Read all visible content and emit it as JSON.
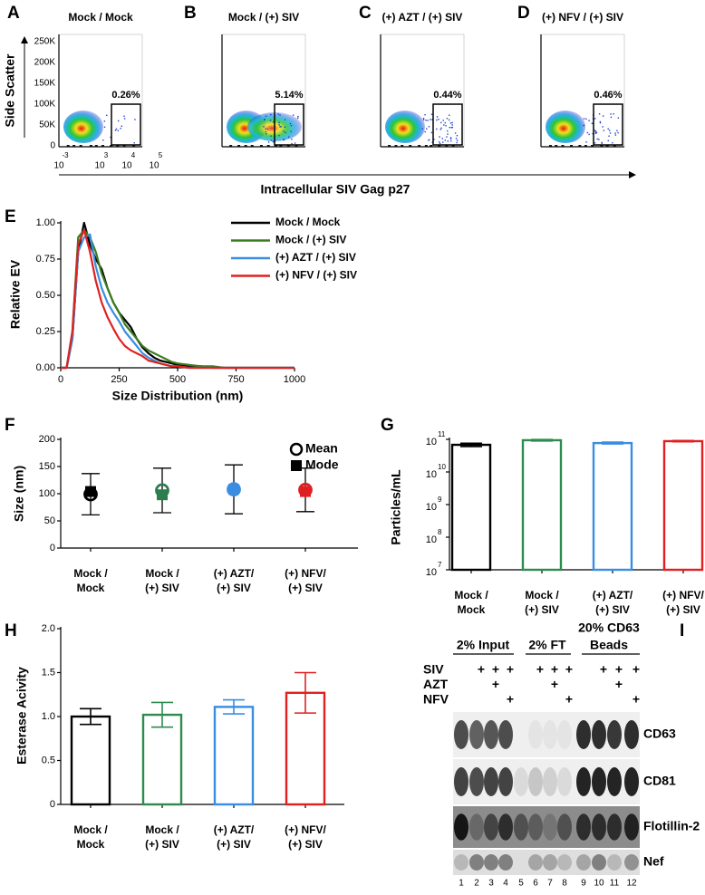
{
  "flow": {
    "y_label": "Side Scatter",
    "x_label": "Intracellular SIV Gag p27",
    "y_ticks": [
      "250K",
      "200K",
      "150K",
      "100K",
      "50K",
      "0"
    ],
    "x_ticks": [
      {
        "base": "10",
        "exponent": "-3"
      },
      {
        "base": "10",
        "exponent": "3"
      },
      {
        "base": "10",
        "exponent": "4"
      },
      {
        "base": "10",
        "exponent": "5"
      }
    ],
    "panels": [
      {
        "letter": "A",
        "title": "Mock / Mock",
        "gate": "0.26%"
      },
      {
        "letter": "B",
        "title": "Mock / (+) SIV",
        "gate": "5.14%"
      },
      {
        "letter": "C",
        "title": "(+) AZT / (+) SIV",
        "gate": "0.44%"
      },
      {
        "letter": "D",
        "title": "(+) NFV / (+) SIV",
        "gate": "0.46%"
      }
    ]
  },
  "chart_data": [
    {
      "panel": "E",
      "type": "line",
      "x_label": "Size Distribution (nm)",
      "y_label": "Relative EV",
      "x": [
        0,
        25,
        50,
        75,
        100,
        125,
        150,
        175,
        200,
        225,
        250,
        275,
        300,
        325,
        350,
        375,
        400,
        425,
        450,
        475,
        500,
        550,
        600,
        650,
        700,
        750,
        800,
        850,
        900,
        950,
        1000
      ],
      "series": [
        {
          "name": "Mock / Mock",
          "color": "#000000",
          "values": [
            0,
            0,
            0.2,
            0.8,
            1.0,
            0.85,
            0.75,
            0.68,
            0.55,
            0.45,
            0.38,
            0.33,
            0.28,
            0.2,
            0.14,
            0.1,
            0.07,
            0.05,
            0.04,
            0.03,
            0.02,
            0.01,
            0.01,
            0,
            0,
            0,
            0,
            0,
            0,
            0,
            0
          ]
        },
        {
          "name": "Mock / (+) SIV",
          "color": "#3a7d1e",
          "values": [
            0,
            0,
            0.25,
            0.9,
            0.95,
            0.9,
            0.8,
            0.65,
            0.55,
            0.45,
            0.38,
            0.3,
            0.25,
            0.2,
            0.15,
            0.12,
            0.1,
            0.08,
            0.06,
            0.04,
            0.03,
            0.02,
            0.01,
            0.01,
            0,
            0,
            0,
            0,
            0,
            0,
            0
          ]
        },
        {
          "name": "(+) AZT / (+) SIV",
          "color": "#3a8de0",
          "values": [
            0,
            0,
            0.2,
            0.8,
            0.9,
            0.92,
            0.7,
            0.55,
            0.45,
            0.38,
            0.32,
            0.25,
            0.2,
            0.15,
            0.1,
            0.07,
            0.05,
            0.03,
            0.02,
            0.01,
            0.01,
            0,
            0,
            0,
            0,
            0,
            0,
            0,
            0,
            0,
            0
          ]
        },
        {
          "name": "(+) NFV / (+) SIV",
          "color": "#e02020",
          "values": [
            0,
            0,
            0.25,
            0.85,
            0.95,
            0.8,
            0.6,
            0.45,
            0.35,
            0.27,
            0.2,
            0.15,
            0.12,
            0.1,
            0.08,
            0.05,
            0.04,
            0.03,
            0.02,
            0.01,
            0.01,
            0,
            0,
            0,
            0,
            0,
            0,
            0,
            0,
            0,
            0
          ]
        }
      ],
      "xlim": [
        0,
        1000
      ],
      "xticks": [
        0,
        250,
        500,
        750,
        1000
      ],
      "ylim": [
        0,
        1
      ],
      "yticks": [
        {
          "value": 0,
          "label": "0.00"
        },
        0.25,
        {
          "value": 0.5,
          "label": "0.50"
        },
        0.75,
        {
          "value": 1,
          "label": "1.00"
        }
      ],
      "legend": "upper right"
    },
    {
      "panel": "F",
      "type": "scatter",
      "y_label": "Size (nm)",
      "categories": [
        [
          "Mock /",
          "Mock"
        ],
        [
          "Mock /",
          "(+) SIV"
        ],
        [
          "(+) AZT/",
          "(+) SIV"
        ],
        [
          "(+) NFV/",
          "(+) SIV"
        ]
      ],
      "colors": [
        "#000000",
        "#2e7d4f",
        "#3a8de0",
        "#e02020"
      ],
      "series": [
        {
          "name": "Mean",
          "marker": "open-circle",
          "values": [
            99,
            106,
            108,
            107
          ],
          "errors": [
            38,
            41,
            45,
            40
          ]
        },
        {
          "name": "Mode",
          "marker": "square",
          "values": [
            104,
            98,
            108,
            104
          ]
        }
      ],
      "ylim": [
        0,
        200
      ],
      "yticks": [
        0,
        50,
        100,
        150,
        200
      ],
      "legend": "upper right"
    },
    {
      "panel": "G",
      "type": "bar",
      "y_label": "Particles/mL",
      "log_scale": true,
      "categories": [
        [
          "Mock /",
          "Mock"
        ],
        [
          "Mock /",
          "(+) SIV"
        ],
        [
          "(+) AZT/",
          "(+) SIV"
        ],
        [
          "(+) NFV/",
          "(+) SIV"
        ]
      ],
      "colors": [
        "#000000",
        "#2e8b4f",
        "#3a8de0",
        "#e02020"
      ],
      "values": [
        68000000000,
        94000000000,
        77000000000,
        88000000000
      ],
      "errors": [
        8000000000,
        5000000000,
        5000000000,
        4000000000
      ],
      "ylim": [
        10000000,
        100000000000
      ],
      "yticks": [
        {
          "value": 10000000,
          "label": "10",
          "exponent": "7"
        },
        {
          "value": 100000000,
          "label": "10",
          "exponent": "8"
        },
        {
          "value": 1000000000,
          "label": "10",
          "exponent": "9"
        },
        {
          "value": 10000000000,
          "label": "10",
          "exponent": "10"
        },
        {
          "value": 100000000000,
          "label": "10",
          "exponent": "11"
        }
      ]
    },
    {
      "panel": "H",
      "type": "bar",
      "y_label": "Esterase Acivity",
      "categories": [
        [
          "Mock /",
          "Mock"
        ],
        [
          "Mock /",
          "(+) SIV"
        ],
        [
          "(+) AZT/",
          "(+) SIV"
        ],
        [
          "(+) NFV/",
          "(+) SIV"
        ]
      ],
      "colors": [
        "#000000",
        "#2e8b4f",
        "#3a8de0",
        "#e02020"
      ],
      "values": [
        1.0,
        1.02,
        1.11,
        1.27
      ],
      "errors": [
        0.09,
        0.14,
        0.08,
        0.23
      ],
      "ylim": [
        0,
        2
      ],
      "yticks": [
        0,
        0.5,
        {
          "value": 1,
          "label": "1.0"
        },
        1.5,
        {
          "value": 2,
          "label": "2.0"
        }
      ]
    }
  ],
  "blot": {
    "panel": "I",
    "headers": [
      [
        "2% Input"
      ],
      [
        "2% FT"
      ],
      [
        "20% CD63",
        "Beads"
      ]
    ],
    "treatments": [
      {
        "label": "SIV",
        "mark": "+",
        "lanes": [
          2,
          3,
          4,
          6,
          7,
          8,
          10,
          11,
          12
        ]
      },
      {
        "label": "AZT",
        "mark": "+",
        "lanes": [
          3,
          7,
          11
        ]
      },
      {
        "label": "NFV",
        "mark": "+",
        "lanes": [
          4,
          8,
          12
        ]
      }
    ],
    "bands": [
      "CD63",
      "CD81",
      "Flotillin-2",
      "Nef"
    ],
    "lane_numbers": [
      1,
      2,
      3,
      4,
      5,
      6,
      7,
      8,
      9,
      10,
      11,
      12
    ]
  }
}
